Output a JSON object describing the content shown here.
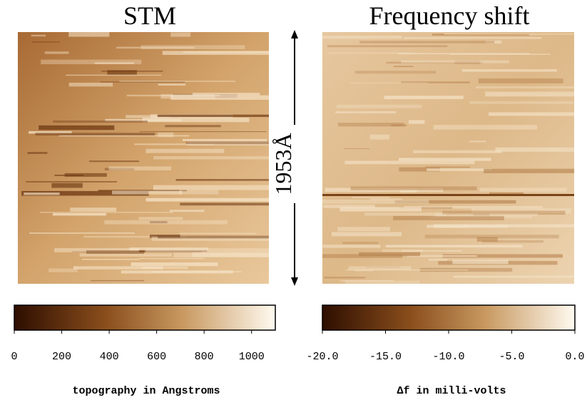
{
  "figure": {
    "panels": [
      {
        "title": "STM",
        "colorbar": {
          "lim": [
            0,
            1100
          ],
          "ticks": [
            0,
            200,
            400,
            600,
            800,
            1000
          ],
          "label": "topography in Angstroms"
        }
      },
      {
        "title": "Frequency shift",
        "colorbar": {
          "lim": [
            -20,
            0
          ],
          "ticks": [
            {
              "value": -20,
              "label": "-20.0"
            },
            {
              "value": -15,
              "label": "-15.0"
            },
            {
              "value": -10,
              "label": "-10.0"
            },
            {
              "value": -5,
              "label": "-5.0"
            },
            {
              "value": 0,
              "label": "0.0"
            }
          ],
          "label": "Δf in milli-volts"
        }
      }
    ],
    "scale_label": "1953Å"
  }
}
